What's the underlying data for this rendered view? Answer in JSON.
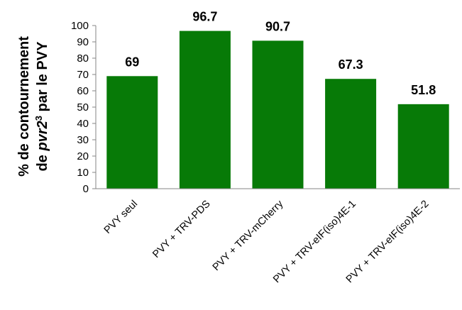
{
  "chart_data": {
    "type": "bar",
    "title": "",
    "xlabel": "",
    "ylabel_line1": "% de contournement",
    "ylabel_line2_prefix": "de ",
    "ylabel_line2_italic": "pvr2",
    "ylabel_line2_sup": "3",
    "ylabel_line2_suffix": " par le PVY",
    "categories": [
      "PVY seul",
      "PVY + TRV-PDS",
      "PVY + TRV-mCherry",
      "PVY + TRV-eIF(iso)4E-1",
      "PVY + TRV-eIF(iso)4E-2"
    ],
    "values": [
      69,
      96.7,
      90.7,
      67.3,
      51.8
    ],
    "data_labels": [
      "69",
      "96.7",
      "90.7",
      "67.3",
      "51.8"
    ],
    "ylim": [
      0,
      100
    ],
    "yticks": [
      0,
      10,
      20,
      30,
      40,
      50,
      60,
      70,
      80,
      90,
      100
    ],
    "bar_color": "#077a07",
    "grid": false,
    "legend": "none"
  }
}
